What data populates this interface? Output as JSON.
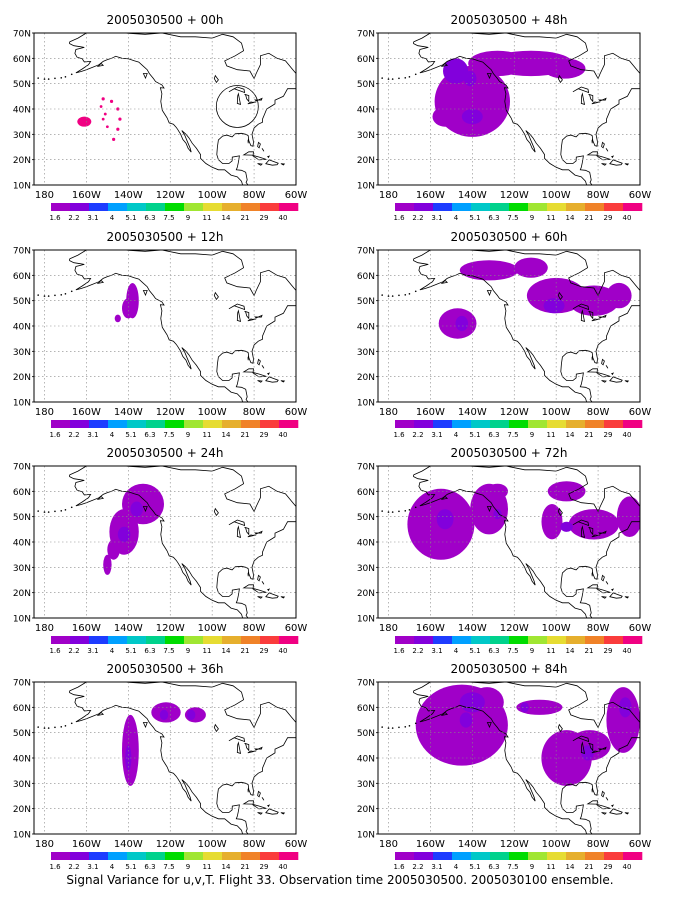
{
  "panels": [
    {
      "title": "2005030500 + 00h"
    },
    {
      "title": "2005030500 + 48h"
    },
    {
      "title": "2005030500 + 12h"
    },
    {
      "title": "2005030500 + 60h"
    },
    {
      "title": "2005030500 + 24h"
    },
    {
      "title": "2005030500 + 72h"
    },
    {
      "title": "2005030500 + 36h"
    },
    {
      "title": "2005030500 + 84h"
    }
  ],
  "map": {
    "lat_labels": [
      "70N",
      "60N",
      "50N",
      "40N",
      "30N",
      "20N",
      "10N"
    ],
    "lon_labels": [
      "180",
      "160W",
      "140W",
      "120W",
      "100W",
      "80W",
      "60W"
    ],
    "lat_range": [
      10,
      70
    ],
    "lon_range": [
      -185,
      -60
    ]
  },
  "colorbar": {
    "labels": [
      "1.6",
      "2.2",
      "3.1",
      "4",
      "5.1",
      "6.3",
      "7.5",
      "9",
      "11",
      "14",
      "21",
      "29",
      "40"
    ],
    "colors": [
      "#a000c8",
      "#8200dc",
      "#1e3cff",
      "#00a0ff",
      "#00c8c8",
      "#00d28c",
      "#00dc00",
      "#a0e632",
      "#e6dc32",
      "#e6af2d",
      "#f08228",
      "#fa3c3c",
      "#f00082"
    ]
  },
  "footer": "Signal Variance for u,v,T. Flight 33. Observation time 2005030500. 2005030100 ensemble."
}
